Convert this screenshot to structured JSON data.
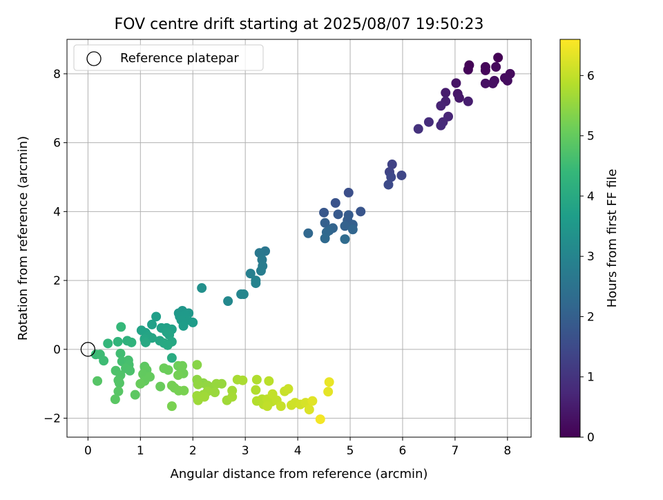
{
  "chart_data": {
    "type": "scatter",
    "title": "FOV centre drift starting at 2025/08/07 19:50:23",
    "xlabel": "Angular distance from reference (arcmin)",
    "ylabel": "Rotation from reference (arcmin)",
    "xlim": [
      -0.4,
      8.45
    ],
    "ylim": [
      -2.55,
      9.0
    ],
    "xticks": [
      0,
      1,
      2,
      3,
      4,
      5,
      6,
      7,
      8
    ],
    "yticks": [
      -2,
      0,
      2,
      4,
      6,
      8
    ],
    "grid": true,
    "legend": {
      "position": "upper-left",
      "entries": [
        "Reference platepar"
      ]
    },
    "reference_point": {
      "x": 0,
      "y": 0
    },
    "colorbar": {
      "label": "Hours from first FF file",
      "range": [
        0,
        6.6
      ],
      "ticks": [
        0,
        1,
        2,
        3,
        4,
        5,
        6
      ],
      "colormap": "viridis",
      "colors": [
        "#440154",
        "#482878",
        "#3e4989",
        "#31688e",
        "#26828e",
        "#1f9e89",
        "#35b779",
        "#6ece58",
        "#b5de2b",
        "#fde725"
      ]
    },
    "points": [
      {
        "x": 7.82,
        "y": 8.47,
        "h": 0.02
      },
      {
        "x": 7.27,
        "y": 8.25,
        "h": 0.05
      },
      {
        "x": 7.25,
        "y": 8.12,
        "h": 0.08
      },
      {
        "x": 7.58,
        "y": 8.2,
        "h": 0.1
      },
      {
        "x": 7.58,
        "y": 8.1,
        "h": 0.12
      },
      {
        "x": 7.78,
        "y": 8.2,
        "h": 0.15
      },
      {
        "x": 8.05,
        "y": 8.0,
        "h": 0.18
      },
      {
        "x": 7.95,
        "y": 7.88,
        "h": 0.2
      },
      {
        "x": 8.0,
        "y": 7.8,
        "h": 0.22
      },
      {
        "x": 7.75,
        "y": 7.8,
        "h": 0.25
      },
      {
        "x": 7.72,
        "y": 7.72,
        "h": 0.28
      },
      {
        "x": 7.58,
        "y": 7.72,
        "h": 0.3
      },
      {
        "x": 7.02,
        "y": 7.73,
        "h": 0.35
      },
      {
        "x": 7.05,
        "y": 7.42,
        "h": 0.4
      },
      {
        "x": 7.08,
        "y": 7.3,
        "h": 0.45
      },
      {
        "x": 6.82,
        "y": 7.45,
        "h": 0.5
      },
      {
        "x": 7.25,
        "y": 7.2,
        "h": 0.55
      },
      {
        "x": 6.82,
        "y": 7.2,
        "h": 0.6
      },
      {
        "x": 6.73,
        "y": 7.07,
        "h": 0.65
      },
      {
        "x": 6.87,
        "y": 6.76,
        "h": 0.7
      },
      {
        "x": 6.77,
        "y": 6.6,
        "h": 0.75
      },
      {
        "x": 6.73,
        "y": 6.5,
        "h": 0.8
      },
      {
        "x": 6.5,
        "y": 6.6,
        "h": 0.85
      },
      {
        "x": 6.3,
        "y": 6.4,
        "h": 0.95
      },
      {
        "x": 5.8,
        "y": 5.37,
        "h": 1.3
      },
      {
        "x": 5.75,
        "y": 5.15,
        "h": 1.35
      },
      {
        "x": 5.98,
        "y": 5.05,
        "h": 1.4
      },
      {
        "x": 5.78,
        "y": 5.0,
        "h": 1.45
      },
      {
        "x": 5.73,
        "y": 4.78,
        "h": 1.5
      },
      {
        "x": 4.97,
        "y": 4.55,
        "h": 1.6
      },
      {
        "x": 4.72,
        "y": 4.25,
        "h": 1.7
      },
      {
        "x": 5.2,
        "y": 4.0,
        "h": 1.75
      },
      {
        "x": 4.5,
        "y": 3.97,
        "h": 1.8
      },
      {
        "x": 4.77,
        "y": 3.92,
        "h": 1.85
      },
      {
        "x": 4.97,
        "y": 3.9,
        "h": 1.9
      },
      {
        "x": 4.95,
        "y": 3.75,
        "h": 1.95
      },
      {
        "x": 4.52,
        "y": 3.67,
        "h": 2.0
      },
      {
        "x": 5.05,
        "y": 3.62,
        "h": 2.0
      },
      {
        "x": 4.9,
        "y": 3.58,
        "h": 2.05
      },
      {
        "x": 4.67,
        "y": 3.52,
        "h": 2.1
      },
      {
        "x": 5.05,
        "y": 3.48,
        "h": 2.15
      },
      {
        "x": 4.6,
        "y": 3.45,
        "h": 2.15
      },
      {
        "x": 4.55,
        "y": 3.4,
        "h": 2.2
      },
      {
        "x": 4.2,
        "y": 3.37,
        "h": 2.2
      },
      {
        "x": 4.52,
        "y": 3.22,
        "h": 2.25
      },
      {
        "x": 4.9,
        "y": 3.2,
        "h": 2.3
      },
      {
        "x": 3.38,
        "y": 2.85,
        "h": 2.6
      },
      {
        "x": 3.27,
        "y": 2.8,
        "h": 2.65
      },
      {
        "x": 3.32,
        "y": 2.6,
        "h": 2.7
      },
      {
        "x": 3.33,
        "y": 2.42,
        "h": 2.75
      },
      {
        "x": 3.3,
        "y": 2.28,
        "h": 2.8
      },
      {
        "x": 3.1,
        "y": 2.2,
        "h": 2.85
      },
      {
        "x": 3.2,
        "y": 2.0,
        "h": 2.9
      },
      {
        "x": 3.2,
        "y": 1.92,
        "h": 2.95
      },
      {
        "x": 2.92,
        "y": 1.6,
        "h": 3.0
      },
      {
        "x": 2.97,
        "y": 1.6,
        "h": 3.05
      },
      {
        "x": 2.67,
        "y": 1.4,
        "h": 3.1
      },
      {
        "x": 2.17,
        "y": 1.78,
        "h": 3.3
      },
      {
        "x": 1.8,
        "y": 1.12,
        "h": 3.45
      },
      {
        "x": 1.92,
        "y": 1.05,
        "h": 3.5
      },
      {
        "x": 1.73,
        "y": 1.05,
        "h": 3.5
      },
      {
        "x": 1.85,
        "y": 1.0,
        "h": 3.55
      },
      {
        "x": 1.75,
        "y": 0.95,
        "h": 3.55
      },
      {
        "x": 1.9,
        "y": 0.85,
        "h": 3.6
      },
      {
        "x": 1.78,
        "y": 0.85,
        "h": 3.6
      },
      {
        "x": 2.0,
        "y": 0.78,
        "h": 3.62
      },
      {
        "x": 1.82,
        "y": 0.68,
        "h": 3.65
      },
      {
        "x": 1.3,
        "y": 0.95,
        "h": 3.7
      },
      {
        "x": 1.22,
        "y": 0.72,
        "h": 3.72
      },
      {
        "x": 1.4,
        "y": 0.62,
        "h": 3.75
      },
      {
        "x": 1.5,
        "y": 0.62,
        "h": 3.75
      },
      {
        "x": 1.6,
        "y": 0.58,
        "h": 3.78
      },
      {
        "x": 1.02,
        "y": 0.55,
        "h": 3.8
      },
      {
        "x": 1.1,
        "y": 0.48,
        "h": 3.8
      },
      {
        "x": 1.5,
        "y": 0.5,
        "h": 3.82
      },
      {
        "x": 1.55,
        "y": 0.42,
        "h": 3.85
      },
      {
        "x": 1.15,
        "y": 0.38,
        "h": 3.85
      },
      {
        "x": 1.22,
        "y": 0.33,
        "h": 3.88
      },
      {
        "x": 1.08,
        "y": 0.3,
        "h": 3.9
      },
      {
        "x": 1.37,
        "y": 0.25,
        "h": 3.9
      },
      {
        "x": 1.6,
        "y": 0.22,
        "h": 3.92
      },
      {
        "x": 1.1,
        "y": 0.2,
        "h": 3.95
      },
      {
        "x": 1.45,
        "y": 0.18,
        "h": 3.95
      },
      {
        "x": 1.52,
        "y": 0.12,
        "h": 3.98
      },
      {
        "x": 1.6,
        "y": -0.25,
        "h": 4.05
      },
      {
        "x": 0.75,
        "y": 0.25,
        "h": 4.2
      },
      {
        "x": 0.83,
        "y": 0.2,
        "h": 4.25
      },
      {
        "x": 0.57,
        "y": 0.22,
        "h": 4.3
      },
      {
        "x": 0.38,
        "y": 0.17,
        "h": 4.35
      },
      {
        "x": 0.63,
        "y": 0.65,
        "h": 4.4
      },
      {
        "x": 0.15,
        "y": -0.15,
        "h": 4.45
      },
      {
        "x": 0.23,
        "y": -0.15,
        "h": 4.5
      },
      {
        "x": 0.3,
        "y": -0.33,
        "h": 4.52
      },
      {
        "x": 0.62,
        "y": -0.12,
        "h": 4.55
      },
      {
        "x": 0.65,
        "y": -0.35,
        "h": 4.6
      },
      {
        "x": 0.77,
        "y": -0.32,
        "h": 4.62
      },
      {
        "x": 0.78,
        "y": -0.45,
        "h": 4.65
      },
      {
        "x": 0.72,
        "y": -0.55,
        "h": 4.68
      },
      {
        "x": 0.8,
        "y": -0.62,
        "h": 4.7
      },
      {
        "x": 0.53,
        "y": -0.62,
        "h": 4.72
      },
      {
        "x": 0.62,
        "y": -0.75,
        "h": 4.75
      },
      {
        "x": 0.58,
        "y": -0.9,
        "h": 4.78
      },
      {
        "x": 0.6,
        "y": -0.98,
        "h": 4.8
      },
      {
        "x": 0.18,
        "y": -0.92,
        "h": 4.82
      },
      {
        "x": 0.58,
        "y": -1.22,
        "h": 4.85
      },
      {
        "x": 0.52,
        "y": -1.45,
        "h": 4.88
      },
      {
        "x": 0.9,
        "y": -1.32,
        "h": 4.9
      },
      {
        "x": 1.08,
        "y": -0.5,
        "h": 4.92
      },
      {
        "x": 1.12,
        "y": -0.6,
        "h": 4.95
      },
      {
        "x": 1.05,
        "y": -0.72,
        "h": 4.98
      },
      {
        "x": 1.18,
        "y": -0.8,
        "h": 5.0
      },
      {
        "x": 1.08,
        "y": -0.92,
        "h": 5.0
      },
      {
        "x": 1.0,
        "y": -1.0,
        "h": 5.05
      },
      {
        "x": 1.38,
        "y": -1.08,
        "h": 5.05
      },
      {
        "x": 1.53,
        "y": -0.6,
        "h": 5.1
      },
      {
        "x": 1.45,
        "y": -0.55,
        "h": 5.1
      },
      {
        "x": 1.72,
        "y": -0.48,
        "h": 5.12
      },
      {
        "x": 1.8,
        "y": -0.48,
        "h": 5.15
      },
      {
        "x": 1.82,
        "y": -0.7,
        "h": 5.15
      },
      {
        "x": 1.72,
        "y": -0.75,
        "h": 5.18
      },
      {
        "x": 1.6,
        "y": -1.05,
        "h": 5.2
      },
      {
        "x": 1.65,
        "y": -1.12,
        "h": 5.2
      },
      {
        "x": 1.73,
        "y": -1.2,
        "h": 5.22
      },
      {
        "x": 1.83,
        "y": -1.2,
        "h": 5.25
      },
      {
        "x": 1.6,
        "y": -1.65,
        "h": 5.25
      },
      {
        "x": 2.08,
        "y": -0.45,
        "h": 5.4
      },
      {
        "x": 2.08,
        "y": -0.88,
        "h": 5.45
      },
      {
        "x": 2.2,
        "y": -0.98,
        "h": 5.45
      },
      {
        "x": 2.1,
        "y": -1.02,
        "h": 5.5
      },
      {
        "x": 2.28,
        "y": -1.05,
        "h": 5.5
      },
      {
        "x": 2.35,
        "y": -1.1,
        "h": 5.52
      },
      {
        "x": 2.45,
        "y": -1.0,
        "h": 5.55
      },
      {
        "x": 2.55,
        "y": -1.0,
        "h": 5.55
      },
      {
        "x": 2.42,
        "y": -1.25,
        "h": 5.58
      },
      {
        "x": 2.28,
        "y": -1.22,
        "h": 5.6
      },
      {
        "x": 2.2,
        "y": -1.32,
        "h": 5.6
      },
      {
        "x": 2.08,
        "y": -1.35,
        "h": 5.62
      },
      {
        "x": 2.1,
        "y": -1.48,
        "h": 5.62
      },
      {
        "x": 2.22,
        "y": -1.38,
        "h": 5.65
      },
      {
        "x": 2.65,
        "y": -1.48,
        "h": 5.65
      },
      {
        "x": 2.75,
        "y": -1.2,
        "h": 5.68
      },
      {
        "x": 2.75,
        "y": -1.38,
        "h": 5.7
      },
      {
        "x": 2.85,
        "y": -0.88,
        "h": 5.72
      },
      {
        "x": 2.95,
        "y": -0.9,
        "h": 5.75
      },
      {
        "x": 3.22,
        "y": -0.88,
        "h": 5.8
      },
      {
        "x": 3.2,
        "y": -1.18,
        "h": 5.82
      },
      {
        "x": 3.22,
        "y": -1.5,
        "h": 5.85
      },
      {
        "x": 3.32,
        "y": -1.45,
        "h": 5.88
      },
      {
        "x": 3.35,
        "y": -1.6,
        "h": 5.9
      },
      {
        "x": 3.45,
        "y": -0.92,
        "h": 5.92
      },
      {
        "x": 3.42,
        "y": -1.45,
        "h": 5.95
      },
      {
        "x": 3.5,
        "y": -1.52,
        "h": 5.95
      },
      {
        "x": 3.42,
        "y": -1.65,
        "h": 5.98
      },
      {
        "x": 3.52,
        "y": -1.3,
        "h": 6.0
      },
      {
        "x": 3.6,
        "y": -1.48,
        "h": 6.0
      },
      {
        "x": 3.68,
        "y": -1.65,
        "h": 6.05
      },
      {
        "x": 3.75,
        "y": -1.22,
        "h": 6.05
      },
      {
        "x": 3.82,
        "y": -1.15,
        "h": 6.08
      },
      {
        "x": 3.88,
        "y": -1.62,
        "h": 6.1
      },
      {
        "x": 3.95,
        "y": -1.55,
        "h": 6.12
      },
      {
        "x": 4.05,
        "y": -1.6,
        "h": 6.15
      },
      {
        "x": 4.15,
        "y": -1.55,
        "h": 6.2
      },
      {
        "x": 4.22,
        "y": -1.75,
        "h": 6.25
      },
      {
        "x": 4.28,
        "y": -1.5,
        "h": 6.3
      },
      {
        "x": 4.58,
        "y": -1.23,
        "h": 6.35
      },
      {
        "x": 4.6,
        "y": -0.95,
        "h": 6.4
      },
      {
        "x": 4.43,
        "y": -2.03,
        "h": 6.5
      }
    ]
  }
}
